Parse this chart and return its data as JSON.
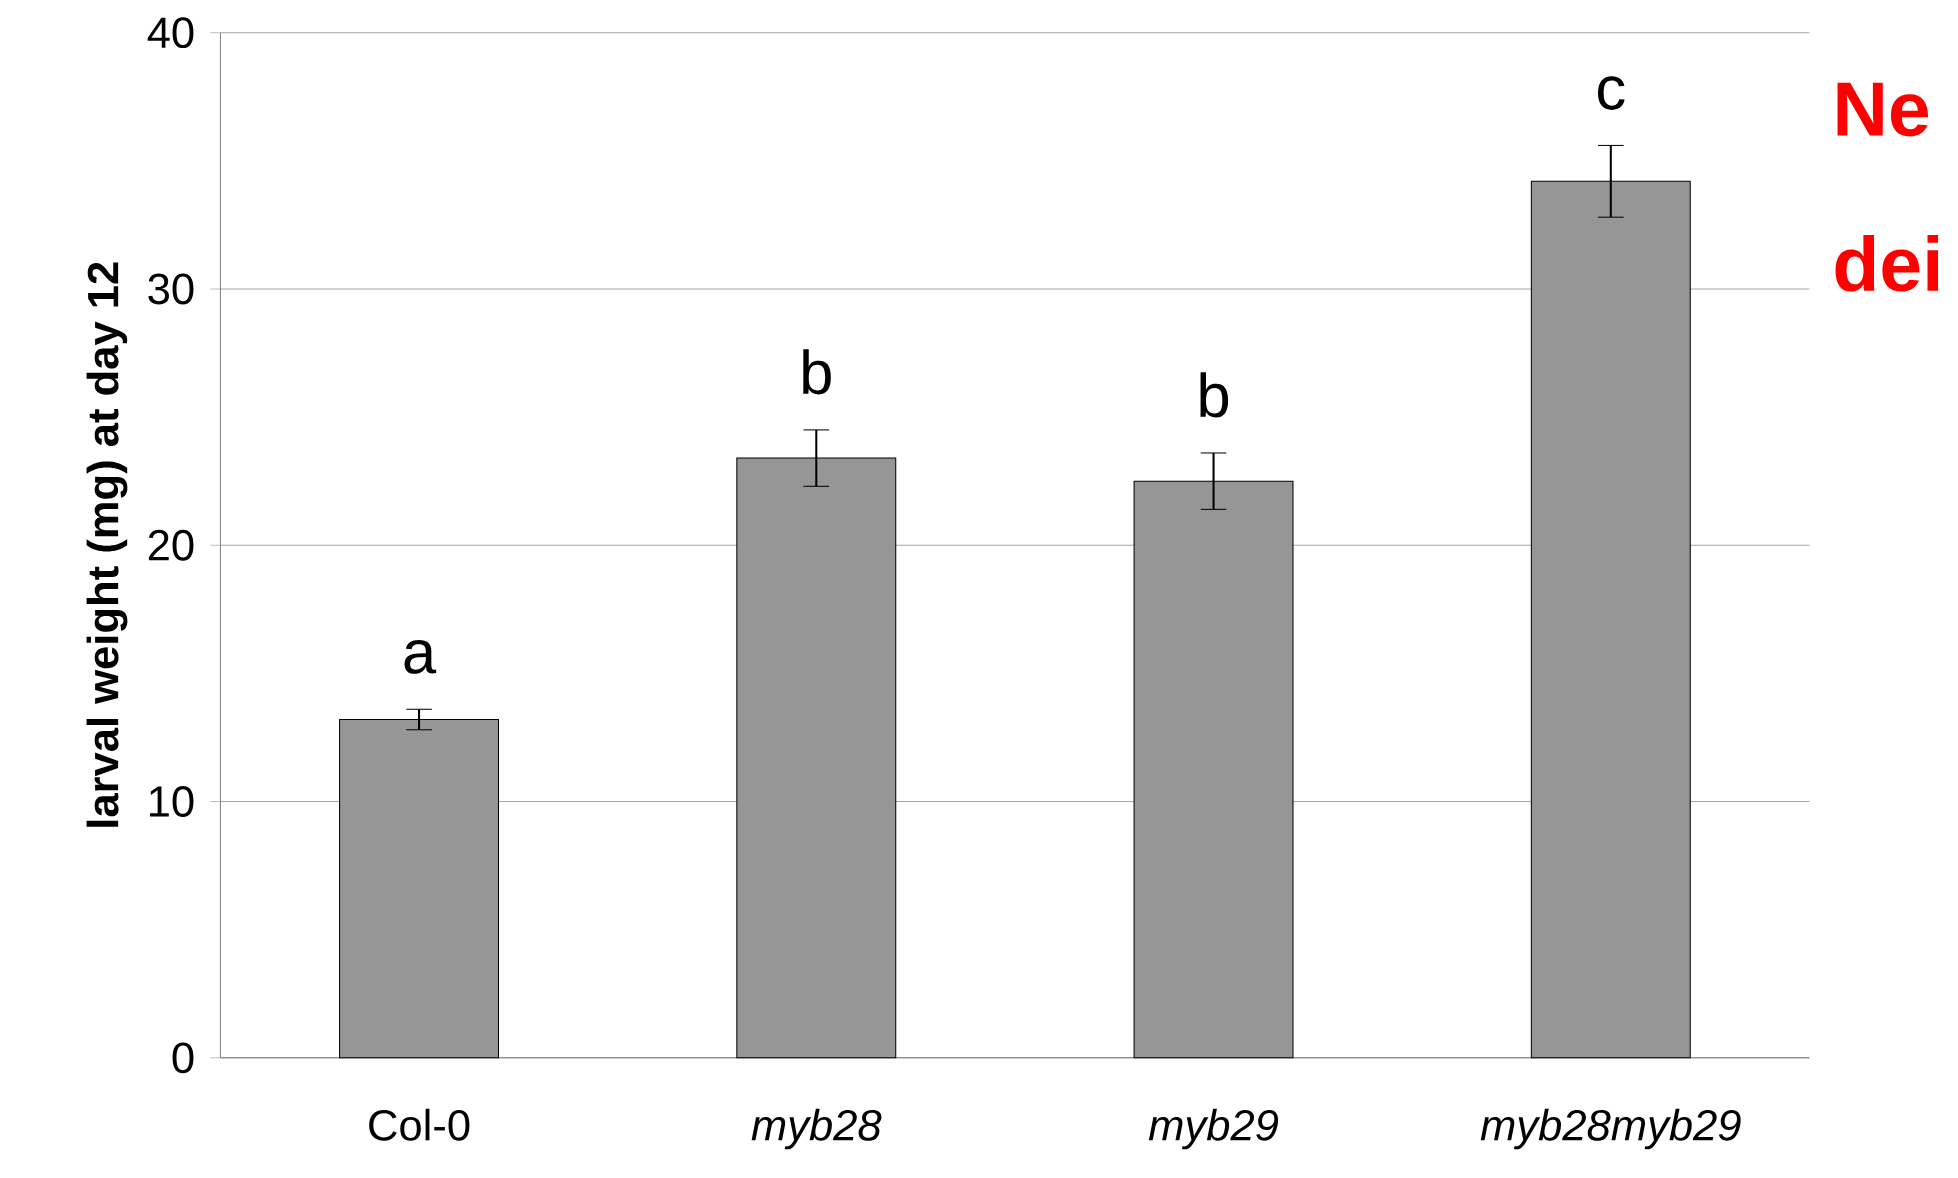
{
  "chart_data": {
    "type": "bar",
    "ylabel": "**larval weight (mg) at day 12**",
    "categories": [
      "Col-0",
      "*myb28*",
      "*myb29*",
      "*myb28myb29*"
    ],
    "values": [
      13.2,
      23.4,
      22.5,
      34.2
    ],
    "errors": [
      0.4,
      1.1,
      1.1,
      1.4
    ],
    "color": "#969696",
    "ylim": [
      0,
      40
    ],
    "yticks": [
      0,
      10,
      20,
      30,
      40
    ],
    "grid": "y",
    "annotations": [
      "a",
      "b",
      "b",
      "c",
      "**Ne**",
      "**dei**"
    ]
  }
}
